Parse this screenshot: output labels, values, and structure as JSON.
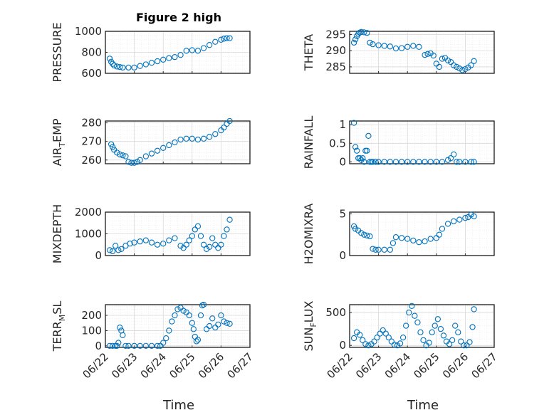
{
  "figure": {
    "title": "Figure 2 high",
    "xlabel": "Time"
  },
  "colors": {
    "series": "#0072BD",
    "axis": "#262626",
    "grid": "#d9d9d9"
  },
  "chart_data": [
    {
      "type": "scatter",
      "ylabel": "PRESSURE",
      "ylim": [
        600,
        1000
      ],
      "yticks": [
        600,
        800,
        1000
      ],
      "xlim": [
        "06/22",
        "06/27"
      ],
      "xticks": [
        "06/22",
        "06/23",
        "06/24",
        "06/25",
        "06/26",
        "06/27"
      ],
      "grid": true,
      "x": [
        0.15,
        0.2,
        0.25,
        0.3,
        0.4,
        0.5,
        0.6,
        0.8,
        1.0,
        1.2,
        1.4,
        1.6,
        1.8,
        2.0,
        2.2,
        2.4,
        2.6,
        2.8,
        3.0,
        3.2,
        3.4,
        3.6,
        3.8,
        4.0,
        4.1,
        4.2,
        4.3
      ],
      "y": [
        740,
        710,
        690,
        675,
        665,
        660,
        655,
        655,
        655,
        670,
        685,
        700,
        715,
        730,
        745,
        755,
        775,
        815,
        820,
        815,
        840,
        870,
        900,
        920,
        930,
        935,
        935
      ]
    },
    {
      "type": "scatter",
      "ylabel": "THETA",
      "ylim": [
        283,
        296
      ],
      "yticks": [
        285,
        290,
        295
      ],
      "xlim": [
        "06/22",
        "06/27"
      ],
      "xticks": [
        "06/22",
        "06/23",
        "06/24",
        "06/25",
        "06/26",
        "06/27"
      ],
      "grid": true,
      "x": [
        0.15,
        0.2,
        0.25,
        0.3,
        0.35,
        0.4,
        0.5,
        0.6,
        0.7,
        0.8,
        1.0,
        1.2,
        1.4,
        1.6,
        1.8,
        2.0,
        2.2,
        2.4,
        2.6,
        2.7,
        2.8,
        2.9,
        3.0,
        3.1,
        3.2,
        3.3,
        3.4,
        3.5,
        3.6,
        3.7,
        3.8,
        3.9,
        4.0,
        4.1,
        4.2,
        4.3
      ],
      "y": [
        292.5,
        293.5,
        294.5,
        295.2,
        295.6,
        295.8,
        295.7,
        295.5,
        292.5,
        292.0,
        291.7,
        291.5,
        291.3,
        290.7,
        290.8,
        291.2,
        291.5,
        291.2,
        288.7,
        289.0,
        289.2,
        288.5,
        286.0,
        285.0,
        287.5,
        287.8,
        287.0,
        286.5,
        285.5,
        285.0,
        284.5,
        284.0,
        284.3,
        284.8,
        285.5,
        286.8
      ]
    },
    {
      "type": "scatter",
      "ylabel": "AIR_TEMP",
      "ylim": [
        258,
        281
      ],
      "yticks": [
        260,
        270,
        280
      ],
      "xlim": [
        "06/22",
        "06/27"
      ],
      "xticks": [
        "06/22",
        "06/23",
        "06/24",
        "06/25",
        "06/26",
        "06/27"
      ],
      "grid": true,
      "x": [
        0.2,
        0.25,
        0.3,
        0.4,
        0.5,
        0.6,
        0.7,
        0.8,
        0.9,
        1.0,
        1.1,
        1.2,
        1.4,
        1.6,
        1.8,
        2.0,
        2.2,
        2.4,
        2.6,
        2.8,
        3.0,
        3.2,
        3.4,
        3.6,
        3.8,
        4.0,
        4.1,
        4.2,
        4.3
      ],
      "y": [
        268.5,
        267.0,
        265.5,
        264.0,
        263.0,
        262.5,
        262.0,
        259.0,
        258.5,
        258.5,
        259.0,
        260.0,
        262.0,
        263.5,
        265.0,
        266.5,
        268.0,
        269.5,
        271.0,
        271.5,
        271.5,
        271.0,
        271.5,
        272.5,
        274.0,
        276.0,
        277.5,
        279.5,
        281.0
      ]
    },
    {
      "type": "scatter",
      "ylabel": "RAINFALL",
      "ylim": [
        -0.05,
        1.1
      ],
      "yticks": [
        0,
        0.5,
        1
      ],
      "xlim": [
        "06/22",
        "06/27"
      ],
      "xticks": [
        "06/22",
        "06/23",
        "06/24",
        "06/25",
        "06/26",
        "06/27"
      ],
      "grid": true,
      "x": [
        0.15,
        0.2,
        0.25,
        0.3,
        0.35,
        0.4,
        0.45,
        0.5,
        0.55,
        0.6,
        0.65,
        0.7,
        0.75,
        0.8,
        0.9,
        1.0,
        1.2,
        1.4,
        1.6,
        1.8,
        2.0,
        2.2,
        2.4,
        2.6,
        2.8,
        3.0,
        3.2,
        3.4,
        3.5,
        3.6,
        3.7,
        3.8,
        4.0,
        4.2,
        4.3
      ],
      "y": [
        1.05,
        0.4,
        0.3,
        0.1,
        0.1,
        0.05,
        0.1,
        0.0,
        0.3,
        0.3,
        0.7,
        0.0,
        0.0,
        0.0,
        0.0,
        0.0,
        0.0,
        0.0,
        0.0,
        0.0,
        0.0,
        0.0,
        0.0,
        0.0,
        0.0,
        0.0,
        0.0,
        0.05,
        0.1,
        0.2,
        0.0,
        0.0,
        0.0,
        0.0,
        0.0
      ]
    },
    {
      "type": "scatter",
      "ylabel": "MIXDEPTH",
      "ylim": [
        0,
        2000
      ],
      "yticks": [
        0,
        1000,
        2000
      ],
      "xlim": [
        "06/22",
        "06/27"
      ],
      "xticks": [
        "06/22",
        "06/23",
        "06/24",
        "06/25",
        "06/26",
        "06/27"
      ],
      "grid": true,
      "x": [
        0.15,
        0.25,
        0.35,
        0.45,
        0.55,
        0.7,
        0.85,
        1.0,
        1.2,
        1.4,
        1.6,
        1.8,
        2.0,
        2.2,
        2.4,
        2.6,
        2.7,
        2.8,
        2.9,
        3.0,
        3.1,
        3.2,
        3.3,
        3.4,
        3.5,
        3.6,
        3.7,
        3.8,
        3.9,
        4.0,
        4.1,
        4.2,
        4.3
      ],
      "y": [
        250,
        200,
        450,
        250,
        300,
        450,
        550,
        600,
        650,
        700,
        600,
        500,
        550,
        700,
        800,
        450,
        350,
        500,
        700,
        900,
        1200,
        1350,
        900,
        500,
        300,
        400,
        800,
        500,
        350,
        500,
        900,
        1200,
        1650
      ]
    },
    {
      "type": "scatter",
      "ylabel": "H2OMIXRA",
      "ylim": [
        0,
        5.2
      ],
      "yticks": [
        0,
        5
      ],
      "xlim": [
        "06/22",
        "06/27"
      ],
      "xticks": [
        "06/22",
        "06/23",
        "06/24",
        "06/25",
        "06/26",
        "06/27"
      ],
      "grid": true,
      "x": [
        0.15,
        0.2,
        0.3,
        0.4,
        0.5,
        0.6,
        0.7,
        0.8,
        0.9,
        1.0,
        1.2,
        1.4,
        1.5,
        1.6,
        1.8,
        2.0,
        2.2,
        2.4,
        2.6,
        2.8,
        3.0,
        3.1,
        3.2,
        3.4,
        3.6,
        3.8,
        4.0,
        4.1,
        4.2,
        4.3
      ],
      "y": [
        3.5,
        3.2,
        3.0,
        2.7,
        2.5,
        2.4,
        2.3,
        0.8,
        0.7,
        0.7,
        0.7,
        0.7,
        1.5,
        2.2,
        2.1,
        2.0,
        1.8,
        1.6,
        1.7,
        2.0,
        2.1,
        2.5,
        3.2,
        3.8,
        4.1,
        4.3,
        4.5,
        4.6,
        4.9,
        4.7
      ]
    },
    {
      "type": "scatter",
      "ylabel": "TERR_MSL",
      "ylim": [
        -10,
        270
      ],
      "yticks": [
        0,
        100,
        200
      ],
      "xlim": [
        "06/22",
        "06/27"
      ],
      "xticks": [
        "06/22",
        "06/23",
        "06/24",
        "06/25",
        "06/26",
        "06/27"
      ],
      "grid": true,
      "x": [
        0.15,
        0.25,
        0.35,
        0.4,
        0.45,
        0.5,
        0.55,
        0.6,
        0.7,
        0.8,
        1.0,
        1.2,
        1.4,
        1.6,
        1.8,
        1.9,
        2.0,
        2.1,
        2.2,
        2.3,
        2.4,
        2.5,
        2.6,
        2.7,
        2.8,
        2.9,
        3.0,
        3.05,
        3.1,
        3.15,
        3.2,
        3.3,
        3.35,
        3.4,
        3.5,
        3.6,
        3.7,
        3.8,
        3.9,
        4.0,
        4.1,
        4.2,
        4.3
      ],
      "y": [
        0,
        0,
        0,
        0,
        20,
        120,
        100,
        70,
        0,
        0,
        0,
        0,
        0,
        0,
        0,
        0,
        20,
        50,
        100,
        160,
        200,
        240,
        250,
        230,
        220,
        200,
        150,
        110,
        60,
        30,
        40,
        200,
        265,
        270,
        110,
        130,
        180,
        120,
        140,
        200,
        160,
        150,
        145
      ]
    },
    {
      "type": "scatter",
      "ylabel": "SUN_FLUX",
      "ylim": [
        -30,
        620
      ],
      "yticks": [
        0,
        500
      ],
      "xlim": [
        "06/22",
        "06/27"
      ],
      "xticks": [
        "06/22",
        "06/23",
        "06/24",
        "06/25",
        "06/26",
        "06/27"
      ],
      "grid": true,
      "x": [
        0.15,
        0.25,
        0.35,
        0.45,
        0.55,
        0.65,
        0.75,
        0.85,
        0.95,
        1.05,
        1.15,
        1.25,
        1.35,
        1.45,
        1.55,
        1.65,
        1.75,
        1.85,
        1.95,
        2.05,
        2.15,
        2.25,
        2.35,
        2.45,
        2.55,
        2.65,
        2.75,
        2.85,
        2.95,
        3.05,
        3.15,
        3.25,
        3.35,
        3.45,
        3.55,
        3.65,
        3.75,
        3.85,
        3.95,
        4.05,
        4.15,
        4.25,
        4.3
      ],
      "y": [
        110,
        200,
        160,
        80,
        20,
        0,
        20,
        60,
        120,
        180,
        230,
        180,
        120,
        60,
        10,
        0,
        30,
        120,
        300,
        500,
        600,
        450,
        350,
        200,
        80,
        0,
        40,
        200,
        300,
        400,
        250,
        150,
        60,
        20,
        80,
        300,
        200,
        60,
        0,
        0,
        50,
        280,
        550
      ]
    }
  ]
}
